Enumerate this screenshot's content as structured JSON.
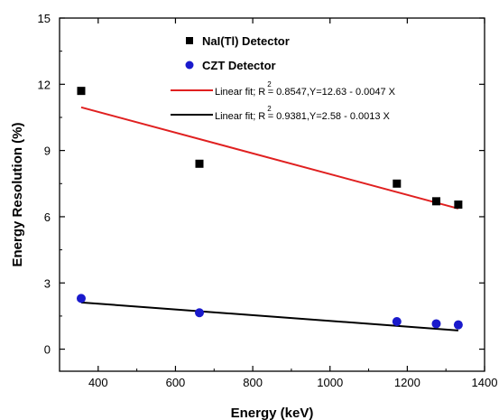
{
  "chart_data": {
    "type": "scatter",
    "xlabel": "Energy (keV)",
    "ylabel": "Energy Resolution (%)",
    "xlim": [
      300,
      1400
    ],
    "ylim": [
      -1,
      15
    ],
    "xticks": [
      400,
      600,
      800,
      1000,
      1200,
      1400
    ],
    "yticks": [
      0,
      3,
      6,
      9,
      12,
      15
    ],
    "grid": false,
    "legend_position": "top-center",
    "series": [
      {
        "name": "NaI(Tl) Detector",
        "marker": "square",
        "color": "#000000",
        "x": [
          356,
          662,
          1173,
          1275,
          1332
        ],
        "y": [
          11.7,
          8.4,
          7.5,
          6.7,
          6.55
        ]
      },
      {
        "name": "CZT Detector",
        "marker": "circle",
        "color": "#1a1acc",
        "x": [
          356,
          662,
          1173,
          1275,
          1332
        ],
        "y": [
          2.3,
          1.65,
          1.25,
          1.15,
          1.1
        ]
      }
    ],
    "fits": [
      {
        "label_prefix": "Linear fit; R",
        "label_sup": "2",
        "label_suffix": "= 0.8547,Y=12.63 - 0.0047 X",
        "color": "#e02020",
        "intercept": 12.63,
        "slope": -0.0047,
        "x_range": [
          356,
          1332
        ]
      },
      {
        "label_prefix": "Linear fit; R",
        "label_sup": "2",
        "label_suffix": "= 0.9381,Y=2.58 - 0.0013 X",
        "color": "#000000",
        "intercept": 2.58,
        "slope": -0.0013,
        "x_range": [
          356,
          1332
        ]
      }
    ]
  }
}
